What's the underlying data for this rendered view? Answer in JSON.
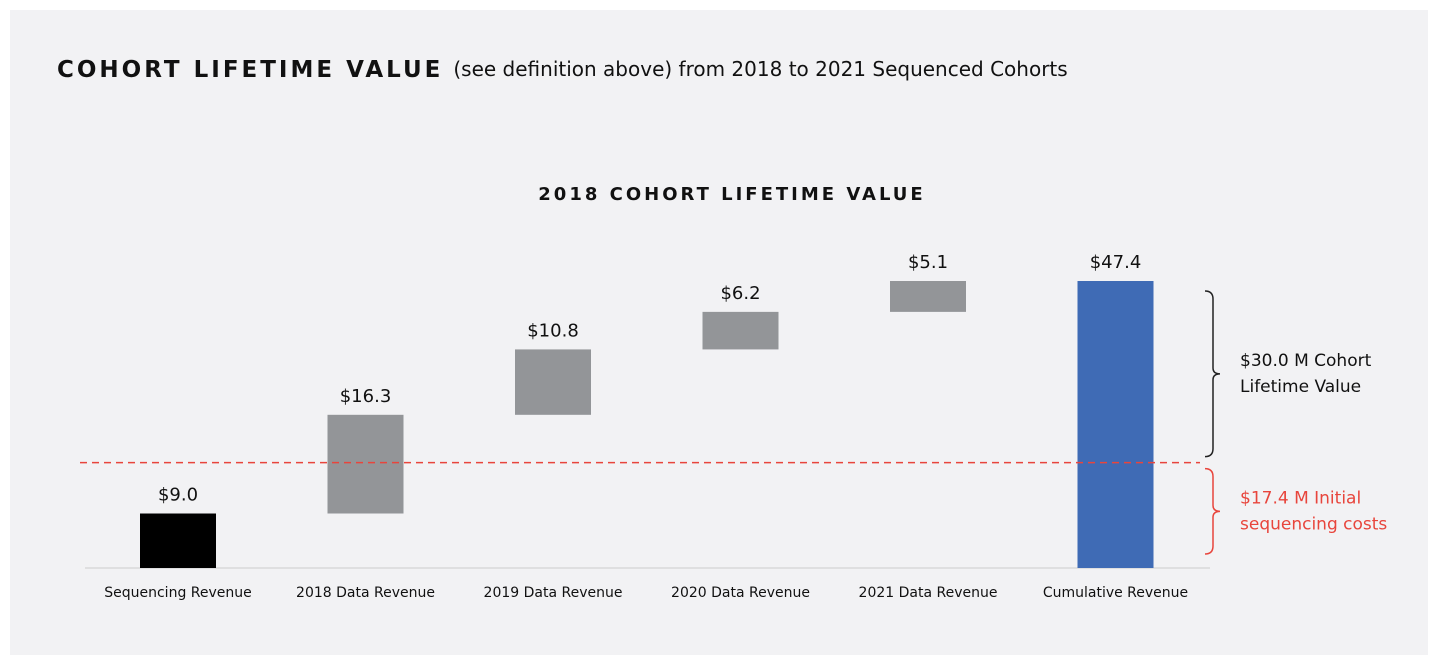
{
  "header": {
    "title": "COHORT LIFETIME VALUE",
    "subtitle": "(see definition above) from 2018 to 2021 Sequenced Cohorts"
  },
  "chart_data": {
    "type": "waterfall",
    "title": "2018 COHORT LIFETIME VALUE",
    "categories": [
      "Sequencing Revenue",
      "2018 Data Revenue",
      "2019 Data Revenue",
      "2020 Data Revenue",
      "2021 Data Revenue",
      "Cumulative Revenue"
    ],
    "values": [
      9.0,
      16.3,
      10.8,
      6.2,
      5.1,
      47.4
    ],
    "value_labels": [
      "$9.0",
      "$16.3",
      "$10.8",
      "$6.2",
      "$5.1",
      "$47.4"
    ],
    "colors": [
      "#000000",
      "#939598",
      "#939598",
      "#939598",
      "#939598",
      "#3f6bb5"
    ],
    "reference_line": {
      "value": 17.4,
      "color": "#e8453c",
      "label_lines": [
        "$17.4 M Initial",
        "sequencing costs"
      ]
    },
    "bracket": {
      "value": 30.0,
      "label_lines": [
        "$30.0 M Cohort",
        "Lifetime Value"
      ]
    }
  }
}
